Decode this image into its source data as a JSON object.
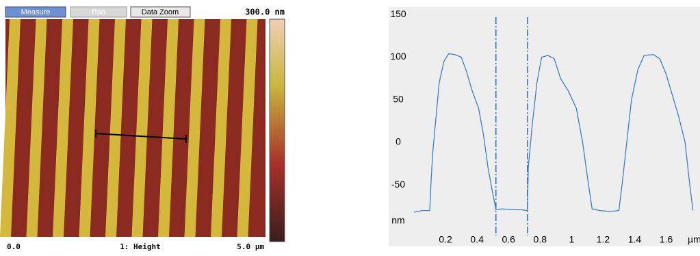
{
  "toolbar": {
    "buttons": [
      "Measure",
      "Pan",
      "Data Zoom"
    ]
  },
  "image": {
    "scale_max": "300.0 nm",
    "x_start": "0.0",
    "channel": "1: Height",
    "x_end": "5.0 µm"
  },
  "chart_data": {
    "type": "line",
    "x_label": "µm",
    "y_label": "nm",
    "xlim": [
      0,
      1.78
    ],
    "ylim": [
      -110,
      155
    ],
    "xticks": [
      0.2,
      0.4,
      0.6,
      0.8,
      1,
      1.2,
      1.4,
      1.6
    ],
    "yticks": [
      150,
      100,
      50,
      0,
      -50
    ],
    "cursors": [
      0.52,
      0.72
    ],
    "cursor_color": "#2f6fc4",
    "x": [
      0,
      0.05,
      0.1,
      0.11,
      0.12,
      0.14,
      0.16,
      0.19,
      0.22,
      0.26,
      0.3,
      0.33,
      0.37,
      0.41,
      0.44,
      0.47,
      0.5,
      0.52,
      0.56,
      0.62,
      0.68,
      0.72,
      0.725,
      0.75,
      0.78,
      0.81,
      0.85,
      0.89,
      0.93,
      0.98,
      1.03,
      1.07,
      1.1,
      1.13,
      1.18,
      1.24,
      1.3,
      1.32,
      1.35,
      1.38,
      1.42,
      1.46,
      1.52,
      1.56,
      1.6,
      1.64,
      1.68,
      1.72,
      1.75,
      1.77
    ],
    "series": [
      {
        "color": "#3a7fd0",
        "values": [
          -82,
          -80,
          -80,
          -40,
          -10,
          30,
          70,
          95,
          104,
          103,
          100,
          85,
          60,
          40,
          10,
          -30,
          -60,
          -79,
          -78,
          -79,
          -79,
          -80,
          -30,
          20,
          70,
          100,
          102,
          98,
          75,
          60,
          40,
          0,
          -40,
          -78,
          -80,
          -81,
          -80,
          -50,
          0,
          50,
          85,
          102,
          103,
          98,
          80,
          55,
          30,
          0,
          -50,
          -80
        ]
      }
    ]
  }
}
